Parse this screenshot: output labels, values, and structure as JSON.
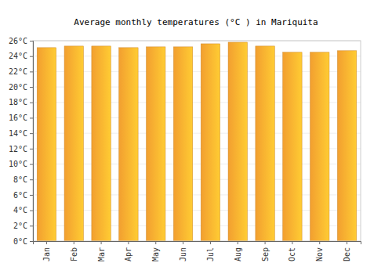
{
  "chart_data": {
    "type": "bar",
    "title": "Average monthly temperatures (°C ) in Mariquita",
    "categories": [
      "Jan",
      "Feb",
      "Mar",
      "Apr",
      "May",
      "Jun",
      "Jul",
      "Aug",
      "Sep",
      "Oct",
      "Nov",
      "Dec"
    ],
    "values": [
      25.1,
      25.3,
      25.3,
      25.1,
      25.2,
      25.2,
      25.6,
      25.8,
      25.3,
      24.5,
      24.5,
      24.7
    ],
    "color": "#ffa833",
    "ylim": [
      0,
      26
    ],
    "yticks": [
      {
        "value": 0,
        "label": "0°C"
      },
      {
        "value": 2,
        "label": "2°C"
      },
      {
        "value": 4,
        "label": "4°C"
      },
      {
        "value": 6,
        "label": "6°C"
      },
      {
        "value": 8,
        "label": "8°C"
      },
      {
        "value": 10,
        "label": "10°C"
      },
      {
        "value": 12,
        "label": "12°C"
      },
      {
        "value": 14,
        "label": "14°C"
      },
      {
        "value": 16,
        "label": "16°C"
      },
      {
        "value": 18,
        "label": "18°C"
      },
      {
        "value": 20,
        "label": "20°C"
      },
      {
        "value": 22,
        "label": "22°C"
      },
      {
        "value": 24,
        "label": "24°C"
      },
      {
        "value": 26,
        "label": "26°C"
      }
    ],
    "grid": true
  }
}
